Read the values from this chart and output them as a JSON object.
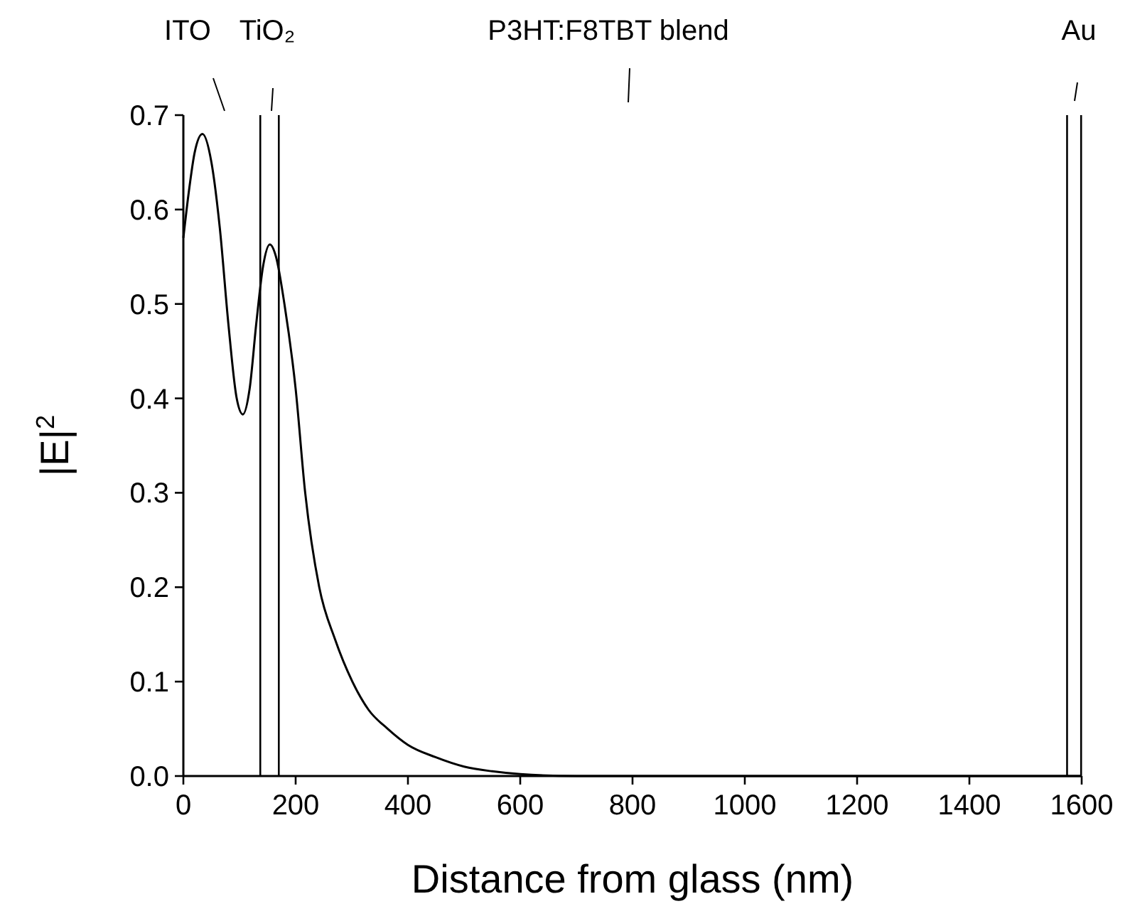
{
  "chart_data": {
    "type": "line",
    "xlabel": "Distance from glass (nm)",
    "ylabel": "|E|$^{2}$",
    "x": [
      0,
      10,
      20,
      34,
      50,
      65,
      80,
      95,
      106,
      118,
      130,
      142,
      154,
      165,
      180,
      200,
      217,
      242,
      270,
      301,
      330,
      364,
      400,
      449,
      500,
      550,
      600,
      700,
      800,
      1000,
      1200,
      1400,
      1600
    ],
    "series": [
      {
        "color": "#000000",
        "values": [
          0.57,
          0.62,
          0.66,
          0.68,
          0.65,
          0.58,
          0.48,
          0.4,
          0.383,
          0.41,
          0.48,
          0.54,
          0.563,
          0.55,
          0.5,
          0.41,
          0.3,
          0.2,
          0.145,
          0.1,
          0.07,
          0.05,
          0.033,
          0.02,
          0.01,
          0.005,
          0.002,
          0,
          0,
          0,
          0,
          0,
          0
        ]
      }
    ],
    "xlim": [
      0,
      1600
    ],
    "xticks": [
      0,
      200,
      400,
      600,
      800,
      1000,
      1200,
      1400,
      1600
    ],
    "ylim": [
      0,
      0.7
    ],
    "yticks": [
      {
        "value": 0,
        "label": "0.0"
      },
      {
        "value": 0.1,
        "label": "0.1"
      },
      {
        "value": 0.2,
        "label": "0.2"
      },
      {
        "value": 0.3,
        "label": "0.3"
      },
      {
        "value": 0.4,
        "label": "0.4"
      },
      {
        "value": 0.5,
        "label": "0.5"
      },
      {
        "value": 0.6,
        "label": "0.6"
      },
      {
        "value": 0.7,
        "label": "0.7"
      }
    ],
    "ref_lines": [
      {
        "axis": "x",
        "value": 137,
        "color": "#000000"
      },
      {
        "axis": "x",
        "value": 170,
        "color": "#000000"
      },
      {
        "axis": "x",
        "value": 1574,
        "color": "#000000"
      },
      {
        "axis": "x",
        "value": 1599,
        "color": "#000000"
      }
    ],
    "annotations": [
      "ITO",
      "TiO₂",
      "P3HT:F8TBT blend",
      "Au"
    ],
    "grid": false,
    "marker": "none",
    "line_style": "solid"
  }
}
